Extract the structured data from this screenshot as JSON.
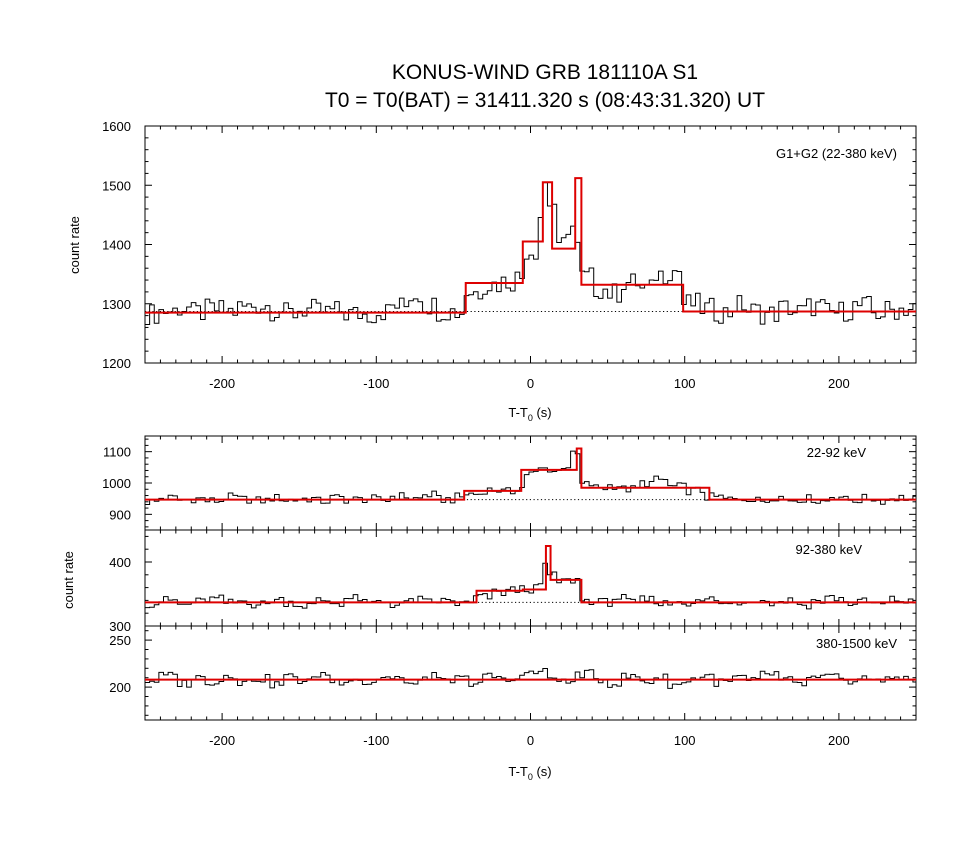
{
  "chart_data": {
    "type": "line",
    "title_line1": "KONUS-WIND GRB 181110A S1",
    "title_line2": "T0 = T0(BAT) = 31411.320 s (08:43:31.320) UT",
    "colors": {
      "data": "#000000",
      "model": "#dd0000",
      "background": "#000000"
    },
    "xlabel_main": "T-T",
    "xlabel_sub": "0",
    "xlabel_unit": " (s)",
    "ylabel": "count rate",
    "xlim": [
      -250,
      250
    ],
    "xticks": [
      -200,
      -100,
      0,
      100,
      200
    ],
    "panels": [
      {
        "label": "G1+G2 (22-380 keV)",
        "ylim": [
          1200,
          1600
        ],
        "yticks": [
          1200,
          1300,
          1400,
          1500,
          1600
        ],
        "ytick_labels": [
          "1200",
          "1300",
          "1400",
          "1500",
          "1600"
        ],
        "background_level": 1287,
        "bin_width": 3,
        "data_step": [
          [
            -250,
            1283
          ],
          [
            -240,
            1288
          ],
          [
            -230,
            1293
          ],
          [
            -220,
            1285
          ],
          [
            -210,
            1290
          ],
          [
            -200,
            1287
          ],
          [
            -190,
            1294
          ],
          [
            -180,
            1297
          ],
          [
            -170,
            1289
          ],
          [
            -160,
            1284
          ],
          [
            -150,
            1290
          ],
          [
            -140,
            1286
          ],
          [
            -130,
            1288
          ],
          [
            -120,
            1283
          ],
          [
            -110,
            1282
          ],
          [
            -100,
            1287
          ],
          [
            -90,
            1296
          ],
          [
            -80,
            1315
          ],
          [
            -70,
            1298
          ],
          [
            -60,
            1288
          ],
          [
            -50,
            1286
          ],
          [
            -42,
            1320
          ],
          [
            -30,
            1333
          ],
          [
            -20,
            1338
          ],
          [
            -10,
            1345
          ],
          [
            -4,
            1390
          ],
          [
            4,
            1450
          ],
          [
            8,
            1505
          ],
          [
            12,
            1470
          ],
          [
            16,
            1388
          ],
          [
            20,
            1400
          ],
          [
            24,
            1430
          ],
          [
            28,
            1395
          ],
          [
            32,
            1345
          ],
          [
            40,
            1325
          ],
          [
            50,
            1318
          ],
          [
            60,
            1336
          ],
          [
            70,
            1324
          ],
          [
            80,
            1350
          ],
          [
            90,
            1356
          ],
          [
            98,
            1300
          ],
          [
            110,
            1292
          ],
          [
            120,
            1285
          ],
          [
            130,
            1298
          ],
          [
            140,
            1288
          ],
          [
            150,
            1283
          ],
          [
            160,
            1293
          ],
          [
            170,
            1287
          ],
          [
            180,
            1295
          ],
          [
            190,
            1285
          ],
          [
            200,
            1288
          ],
          [
            210,
            1296
          ],
          [
            220,
            1284
          ],
          [
            230,
            1289
          ],
          [
            240,
            1292
          ]
        ],
        "model_step": [
          [
            -250,
            1285
          ],
          [
            -42,
            1335
          ],
          [
            -5,
            1405
          ],
          [
            8,
            1505
          ],
          [
            14,
            1393
          ],
          [
            29,
            1512
          ],
          [
            33,
            1332
          ],
          [
            99,
            1287
          ],
          [
            250,
            1287
          ]
        ]
      },
      {
        "label": "22-92 keV",
        "ylim": [
          850,
          1150
        ],
        "yticks": [
          900,
          1000,
          1100
        ],
        "ytick_labels": [
          "900",
          "1000",
          "1100"
        ],
        "background_level": 947,
        "bin_width": 3,
        "data_step": [
          [
            -250,
            940
          ],
          [
            -240,
            952
          ],
          [
            -230,
            945
          ],
          [
            -220,
            950
          ],
          [
            -210,
            943
          ],
          [
            -200,
            955
          ],
          [
            -190,
            948
          ],
          [
            -180,
            944
          ],
          [
            -170,
            952
          ],
          [
            -160,
            946
          ],
          [
            -150,
            950
          ],
          [
            -140,
            942
          ],
          [
            -130,
            953
          ],
          [
            -120,
            947
          ],
          [
            -110,
            949
          ],
          [
            -100,
            945
          ],
          [
            -90,
            958
          ],
          [
            -80,
            950
          ],
          [
            -70,
            962
          ],
          [
            -60,
            948
          ],
          [
            -50,
            955
          ],
          [
            -42,
            965
          ],
          [
            -30,
            978
          ],
          [
            -20,
            972
          ],
          [
            -10,
            985
          ],
          [
            -4,
            1030
          ],
          [
            6,
            1045
          ],
          [
            14,
            1038
          ],
          [
            20,
            1055
          ],
          [
            26,
            1090
          ],
          [
            32,
            995
          ],
          [
            40,
            985
          ],
          [
            50,
            992
          ],
          [
            60,
            980
          ],
          [
            70,
            1000
          ],
          [
            80,
            1010
          ],
          [
            90,
            988
          ],
          [
            100,
            975
          ],
          [
            114,
            955
          ],
          [
            124,
            948
          ],
          [
            134,
            952
          ],
          [
            144,
            944
          ],
          [
            154,
            956
          ],
          [
            164,
            947
          ],
          [
            174,
            950
          ],
          [
            184,
            943
          ],
          [
            194,
            958
          ],
          [
            204,
            946
          ],
          [
            214,
            951
          ],
          [
            224,
            944
          ],
          [
            234,
            953
          ],
          [
            244,
            947
          ]
        ],
        "model_step": [
          [
            -250,
            947
          ],
          [
            -43,
            975
          ],
          [
            -6,
            1042
          ],
          [
            30,
            1110
          ],
          [
            33,
            985
          ],
          [
            116,
            947
          ],
          [
            250,
            947
          ]
        ]
      },
      {
        "label": "92-380 keV",
        "ylim": [
          300,
          450
        ],
        "yticks": [
          300,
          400
        ],
        "ytick_labels": [
          "300",
          "400"
        ],
        "background_level": 337,
        "bin_width": 3,
        "data_step": [
          [
            -250,
            335
          ],
          [
            -240,
            340
          ],
          [
            -230,
            333
          ],
          [
            -220,
            338
          ],
          [
            -210,
            342
          ],
          [
            -200,
            336
          ],
          [
            -190,
            339
          ],
          [
            -180,
            334
          ],
          [
            -170,
            341
          ],
          [
            -160,
            337
          ],
          [
            -150,
            332
          ],
          [
            -140,
            340
          ],
          [
            -130,
            336
          ],
          [
            -120,
            343
          ],
          [
            -110,
            335
          ],
          [
            -100,
            338
          ],
          [
            -90,
            334
          ],
          [
            -80,
            341
          ],
          [
            -70,
            337
          ],
          [
            -60,
            339
          ],
          [
            -50,
            335
          ],
          [
            -36,
            345
          ],
          [
            -26,
            352
          ],
          [
            -16,
            356
          ],
          [
            -6,
            358
          ],
          [
            4,
            362
          ],
          [
            8,
            398
          ],
          [
            12,
            378
          ],
          [
            18,
            370
          ],
          [
            26,
            372
          ],
          [
            32,
            340
          ],
          [
            42,
            337
          ],
          [
            52,
            344
          ],
          [
            62,
            336
          ],
          [
            72,
            341
          ],
          [
            82,
            335
          ],
          [
            92,
            339
          ],
          [
            102,
            337
          ],
          [
            112,
            342
          ],
          [
            122,
            334
          ],
          [
            132,
            338
          ],
          [
            142,
            343
          ],
          [
            152,
            336
          ],
          [
            162,
            340
          ],
          [
            172,
            333
          ],
          [
            182,
            339
          ],
          [
            192,
            344
          ],
          [
            202,
            336
          ],
          [
            212,
            338
          ],
          [
            222,
            334
          ],
          [
            232,
            341
          ],
          [
            242,
            337
          ]
        ],
        "model_step": [
          [
            -250,
            337
          ],
          [
            -35,
            355
          ],
          [
            -5,
            357
          ],
          [
            10,
            425
          ],
          [
            13,
            372
          ],
          [
            33,
            337
          ],
          [
            250,
            337
          ]
        ]
      },
      {
        "label": "380-1500 keV",
        "ylim": [
          165,
          265
        ],
        "yticks": [
          200,
          250
        ],
        "ytick_labels": [
          "200",
          "250"
        ],
        "background_level": 208,
        "bin_width": 3,
        "data_step": [
          [
            -250,
            207
          ],
          [
            -240,
            212
          ],
          [
            -230,
            204
          ],
          [
            -220,
            210
          ],
          [
            -210,
            206
          ],
          [
            -200,
            213
          ],
          [
            -190,
            205
          ],
          [
            -180,
            209
          ],
          [
            -170,
            203
          ],
          [
            -160,
            211
          ],
          [
            -150,
            207
          ],
          [
            -140,
            214
          ],
          [
            -130,
            206
          ],
          [
            -120,
            209
          ],
          [
            -110,
            204
          ],
          [
            -100,
            210
          ],
          [
            -90,
            208
          ],
          [
            -80,
            203
          ],
          [
            -70,
            212
          ],
          [
            -60,
            206
          ],
          [
            -50,
            209
          ],
          [
            -40,
            205
          ],
          [
            -30,
            211
          ],
          [
            -20,
            207
          ],
          [
            -10,
            213
          ],
          [
            0,
            216
          ],
          [
            10,
            210
          ],
          [
            20,
            205
          ],
          [
            30,
            214
          ],
          [
            40,
            208
          ],
          [
            50,
            204
          ],
          [
            60,
            211
          ],
          [
            70,
            206
          ],
          [
            80,
            210
          ],
          [
            90,
            203
          ],
          [
            100,
            209
          ],
          [
            110,
            212
          ],
          [
            120,
            205
          ],
          [
            130,
            210
          ],
          [
            140,
            206
          ],
          [
            150,
            214
          ],
          [
            160,
            207
          ],
          [
            170,
            203
          ],
          [
            180,
            209
          ],
          [
            190,
            211
          ],
          [
            200,
            205
          ],
          [
            210,
            210
          ],
          [
            220,
            206
          ],
          [
            230,
            212
          ],
          [
            240,
            207
          ]
        ],
        "model_step": [
          [
            -250,
            208
          ],
          [
            250,
            208
          ]
        ]
      }
    ]
  }
}
